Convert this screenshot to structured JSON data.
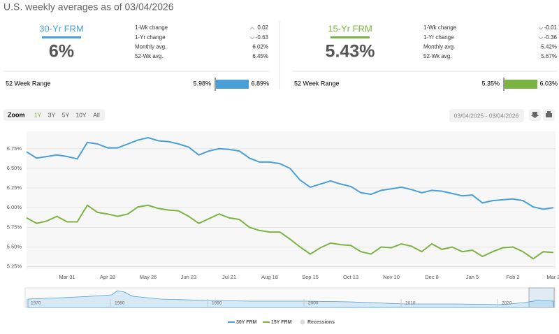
{
  "header": {
    "title": "U.S. weekly averages as of 03/04/2026"
  },
  "panels": [
    {
      "label": "30-Yr FRM",
      "rate": "6%",
      "stats": [
        {
          "label": "1-Wk change",
          "value": "0.02"
        },
        {
          "label": "1-Yr change",
          "value": "-0.63"
        },
        {
          "label": "Monthly avg.",
          "value": "6.02%"
        },
        {
          "label": "52-Wk avg.",
          "value": "6.45%"
        }
      ],
      "range_label": "52 Week Range",
      "range_low": "5.98%",
      "range_high": "6.89%"
    },
    {
      "label": "15-Yr FRM",
      "rate": "5.43%",
      "stats": [
        {
          "label": "1-Wk change",
          "value": "-0.01"
        },
        {
          "label": "1-Yr change",
          "value": "-0.36"
        },
        {
          "label": "Monthly avg.",
          "value": "5.42%"
        },
        {
          "label": "52-Wk avg.",
          "value": "5.67%"
        }
      ],
      "range_label": "52 Week Range",
      "range_low": "5.35%",
      "range_high": "6.03%"
    }
  ],
  "toolbar": {
    "zoom": "Zoom",
    "buttons": [
      "1Y",
      "3Y",
      "5Y",
      "10Y",
      "All"
    ],
    "date_range": "03/04/2025 - 03/04/2026"
  },
  "chart_data": {
    "type": "line",
    "categories": [
      null,
      null,
      null,
      null,
      "Mar 31",
      null,
      null,
      null,
      "Apr 28",
      null,
      null,
      null,
      "May 26",
      null,
      null,
      null,
      "Jun 23",
      null,
      null,
      null,
      "Jul 21",
      null,
      null,
      null,
      "Aug 18",
      null,
      null,
      null,
      "Sep 15",
      null,
      null,
      null,
      "Oct 13",
      null,
      null,
      null,
      "Nov 10",
      null,
      null,
      null,
      "Dec 8",
      null,
      null,
      null,
      "Jan 5",
      null,
      null,
      null,
      "Feb 2",
      null,
      null,
      null,
      "Mar 2"
    ],
    "series": [
      {
        "name": "30Y FRM",
        "color": "#4a9fd8",
        "values": [
          6.71,
          6.63,
          6.65,
          6.67,
          6.65,
          6.62,
          6.83,
          6.81,
          6.76,
          6.76,
          6.81,
          6.86,
          6.89,
          6.85,
          6.84,
          6.81,
          6.77,
          6.67,
          6.72,
          6.75,
          6.74,
          6.72,
          6.63,
          6.58,
          6.58,
          6.56,
          6.5,
          6.35,
          6.26,
          6.3,
          6.34,
          6.3,
          6.27,
          6.19,
          6.17,
          6.22,
          6.24,
          6.26,
          6.23,
          6.19,
          6.22,
          6.21,
          6.18,
          6.15,
          6.16,
          6.06,
          6.09,
          6.1,
          6.11,
          6.09,
          6.01,
          5.98,
          6.0
        ]
      },
      {
        "name": "15Y FRM",
        "color": "#7cb342",
        "values": [
          5.87,
          5.8,
          5.83,
          5.89,
          5.82,
          5.82,
          6.03,
          5.94,
          5.92,
          5.89,
          5.92,
          6.01,
          6.03,
          5.99,
          5.97,
          5.96,
          5.89,
          5.8,
          5.86,
          5.92,
          5.87,
          5.85,
          5.75,
          5.71,
          5.69,
          5.69,
          5.6,
          5.5,
          5.41,
          5.49,
          5.55,
          5.53,
          5.52,
          5.44,
          5.41,
          5.5,
          5.49,
          5.54,
          5.51,
          5.44,
          5.54,
          5.47,
          5.5,
          5.44,
          5.46,
          5.38,
          5.44,
          5.49,
          5.5,
          5.44,
          5.35,
          5.44,
          5.43
        ]
      }
    ],
    "recessions_label": "Recessions",
    "ylim": [
      5.22,
      6.97
    ],
    "yticks": [
      {
        "value": 5.25,
        "label": "5.25%"
      },
      {
        "value": 5.5,
        "label": "5.50%"
      },
      {
        "value": 5.75,
        "label": "5.75%"
      },
      {
        "value": 6,
        "label": "6.00%"
      },
      {
        "value": 6.25,
        "label": "6.25%"
      },
      {
        "value": 6.5,
        "label": "6.50%"
      },
      {
        "value": 6.75,
        "label": "6.75%"
      }
    ],
    "grid": true
  },
  "navigator": {
    "labels": [
      "1970",
      "1980",
      "1990",
      "2000",
      "2010",
      "2020"
    ]
  }
}
